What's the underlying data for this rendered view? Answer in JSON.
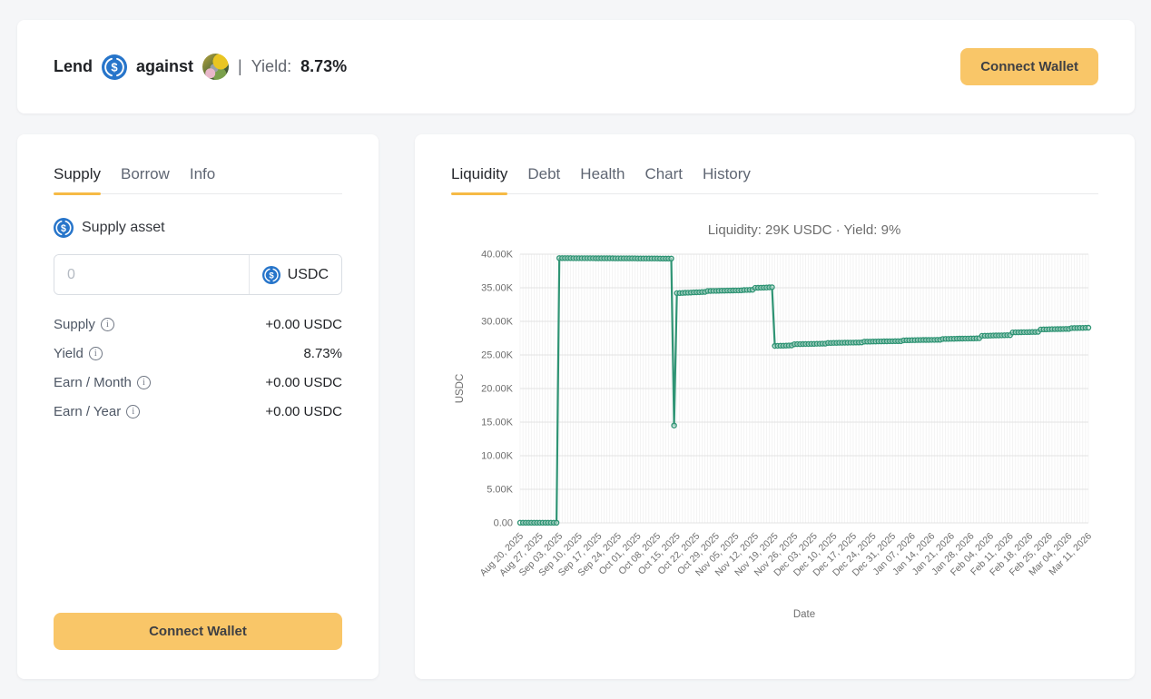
{
  "header": {
    "lend_label": "Lend",
    "against_label": "against",
    "divider": "|",
    "yield_label": "Yield:",
    "yield_value": "8.73%",
    "connect_wallet_label": "Connect Wallet"
  },
  "left_panel": {
    "tabs": [
      {
        "label": "Supply",
        "active": true
      },
      {
        "label": "Borrow",
        "active": false
      },
      {
        "label": "Info",
        "active": false
      }
    ],
    "supply_asset_label": "Supply asset",
    "amount_input": {
      "value": "",
      "placeholder": "0"
    },
    "asset_chip_label": "USDC",
    "stats": [
      {
        "label": "Supply",
        "value": "+0.00 USDC"
      },
      {
        "label": "Yield",
        "value": "8.73%"
      },
      {
        "label": "Earn / Month",
        "value": "+0.00 USDC"
      },
      {
        "label": "Earn / Year",
        "value": "+0.00 USDC"
      }
    ],
    "connect_wallet_label": "Connect Wallet"
  },
  "right_panel": {
    "tabs": [
      {
        "label": "Liquidity",
        "active": true
      },
      {
        "label": "Debt",
        "active": false
      },
      {
        "label": "Health",
        "active": false
      },
      {
        "label": "Chart",
        "active": false
      },
      {
        "label": "History",
        "active": false
      }
    ]
  },
  "colors": {
    "accent_yellow": "#f9c668",
    "tab_underline": "#f6ba45",
    "usdc_blue": "#2775CA",
    "line_green": "#2f9474",
    "chart_text": "#6e6e6e",
    "grid": "#e7e7e7"
  },
  "chart_data": {
    "type": "line",
    "title": "Liquidity: 29K USDC · Yield: 9%",
    "xlabel": "Date",
    "ylabel": "USDC",
    "ylim": [
      0,
      40000
    ],
    "yticks": [
      0,
      5000,
      10000,
      15000,
      20000,
      25000,
      30000,
      35000,
      40000
    ],
    "ytick_labels": [
      "0.00",
      "5.00K",
      "10.00K",
      "15.00K",
      "20.00K",
      "25.00K",
      "30.00K",
      "35.00K",
      "40.00K"
    ],
    "x_start": "2025-08-20",
    "x_end": "2026-03-11",
    "x_frequency": "daily",
    "xtick_every_days": 7,
    "xtick_labels": [
      "Aug 20, 2025",
      "Aug 27, 2025",
      "Sep 03, 2025",
      "Sep 10, 2025",
      "Sep 17, 2025",
      "Sep 24, 2025",
      "Oct 01, 2025",
      "Oct 08, 2025",
      "Oct 15, 2025",
      "Oct 22, 2025",
      "Oct 29, 2025",
      "Nov 05, 2025",
      "Nov 12, 2025",
      "Nov 19, 2025",
      "Nov 26, 2025",
      "Dec 03, 2025",
      "Dec 10, 2025",
      "Dec 17, 2025",
      "Dec 24, 2025",
      "Dec 31, 2025",
      "Jan 07, 2026",
      "Jan 14, 2026",
      "Jan 21, 2026",
      "Jan 28, 2026",
      "Feb 04, 2026",
      "Feb 11, 2026",
      "Feb 18, 2026",
      "Feb 25, 2026",
      "Mar 04, 2026",
      "Mar 11, 2026"
    ],
    "grid": true,
    "legend": "none",
    "line_color": "#2f9474",
    "marker": "circle",
    "segments_note": "daily step series; value interpolates linearly within a segment and jumps between segments",
    "segments": [
      {
        "from": "2025-08-20",
        "to": "2025-09-02",
        "start": 30,
        "end": 30
      },
      {
        "from": "2025-09-03",
        "to": "2025-10-13",
        "start": 39420,
        "end": 39350
      },
      {
        "from": "2025-10-14",
        "to": "2025-10-14",
        "start": 14500,
        "end": 14500
      },
      {
        "from": "2025-10-15",
        "to": "2025-10-25",
        "start": 34200,
        "end": 34380
      },
      {
        "from": "2025-10-26",
        "to": "2025-11-07",
        "start": 34520,
        "end": 34620
      },
      {
        "from": "2025-11-08",
        "to": "2025-11-11",
        "start": 34660,
        "end": 34700
      },
      {
        "from": "2025-11-12",
        "to": "2025-11-18",
        "start": 34980,
        "end": 35080
      },
      {
        "from": "2025-11-19",
        "to": "2025-11-25",
        "start": 26350,
        "end": 26420
      },
      {
        "from": "2025-11-26",
        "to": "2025-12-07",
        "start": 26600,
        "end": 26680
      },
      {
        "from": "2025-12-08",
        "to": "2025-12-20",
        "start": 26780,
        "end": 26860
      },
      {
        "from": "2025-12-21",
        "to": "2026-01-03",
        "start": 26980,
        "end": 27060
      },
      {
        "from": "2026-01-04",
        "to": "2026-01-17",
        "start": 27180,
        "end": 27260
      },
      {
        "from": "2026-01-18",
        "to": "2026-01-31",
        "start": 27380,
        "end": 27480
      },
      {
        "from": "2026-02-01",
        "to": "2026-02-11",
        "start": 27850,
        "end": 27950
      },
      {
        "from": "2026-02-12",
        "to": "2026-02-21",
        "start": 28350,
        "end": 28430
      },
      {
        "from": "2026-02-22",
        "to": "2026-03-04",
        "start": 28800,
        "end": 28880
      },
      {
        "from": "2026-03-05",
        "to": "2026-03-11",
        "start": 29000,
        "end": 29050
      }
    ]
  }
}
